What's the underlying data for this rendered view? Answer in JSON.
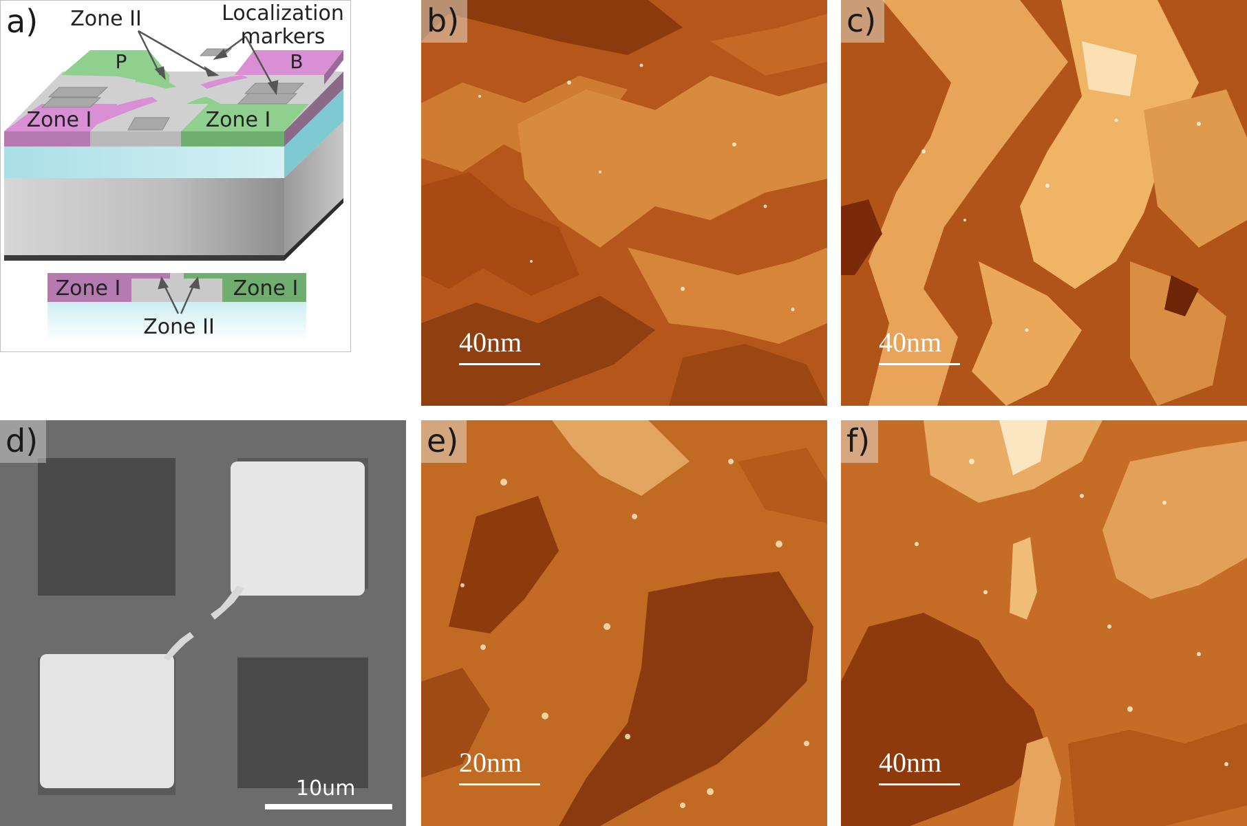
{
  "figure": {
    "panels": {
      "a": {
        "label": "a)",
        "annotations": {
          "zone2_top": "Zone II",
          "loc_line1": "Localization",
          "loc_line2": "markers",
          "pad_p": "P",
          "pad_b": "B",
          "zone1_left": "Zone I",
          "zone1_right": "Zone I",
          "section_zone1_left": "Zone I",
          "section_zone1_right": "Zone I",
          "section_zone2": "Zone II"
        }
      },
      "b": {
        "label": "b)",
        "scale_bar": "40nm"
      },
      "c": {
        "label": "c)",
        "scale_bar": "40nm"
      },
      "d": {
        "label": "d)",
        "scale_bar": "10um"
      },
      "e": {
        "label": "e)",
        "scale_bar": "20nm"
      },
      "f": {
        "label": "f)",
        "scale_bar": "40nm"
      }
    },
    "colors": {
      "zone_green": "#8fd08f",
      "zone_pink": "#d98fd4",
      "stm_dark": "#7a2e06",
      "stm_mid": "#c4621c",
      "stm_light": "#f0b86e",
      "sem_bg": "#6e6e6e",
      "sem_pad": "#e8e8e8"
    }
  }
}
